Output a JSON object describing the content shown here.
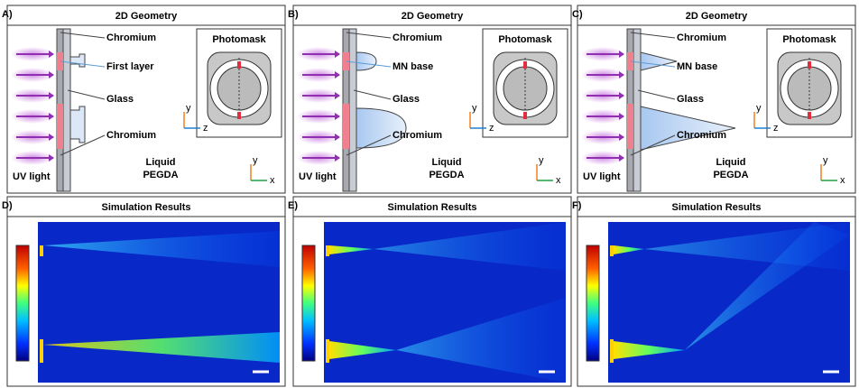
{
  "panels": [
    {
      "letter": "A)",
      "title": "2D Geometry",
      "labels": [
        "Chromium",
        "First layer",
        "Glass",
        "Chromium"
      ],
      "light": "UV light",
      "liquid": [
        "Liquid",
        "PEGDA"
      ],
      "inset": {
        "title": "Photomask",
        "axes": [
          "y",
          "z"
        ]
      },
      "axes": [
        "y",
        "x"
      ]
    },
    {
      "letter": "B)",
      "title": "2D Geometry",
      "labels": [
        "Chromium",
        "MN base",
        "Glass",
        "Chromium"
      ],
      "light": "UV light",
      "liquid": [
        "Liquid",
        "PEGDA"
      ],
      "inset": {
        "title": "Photomask",
        "axes": [
          "y",
          "z"
        ]
      },
      "axes": [
        "y",
        "x"
      ]
    },
    {
      "letter": "C)",
      "title": "2D Geometry",
      "labels": [
        "Chromium",
        "MN base",
        "Glass",
        "Chromium"
      ],
      "light": "UV light",
      "liquid": [
        "Liquid",
        "PEGDA"
      ],
      "inset": {
        "title": "Photomask",
        "axes": [
          "y",
          "z"
        ]
      },
      "axes": [
        "y",
        "x"
      ]
    },
    {
      "letter": "D)",
      "title": "Simulation Results"
    },
    {
      "letter": "E)",
      "title": "Simulation Results"
    },
    {
      "letter": "F)",
      "title": "Simulation Results"
    }
  ]
}
